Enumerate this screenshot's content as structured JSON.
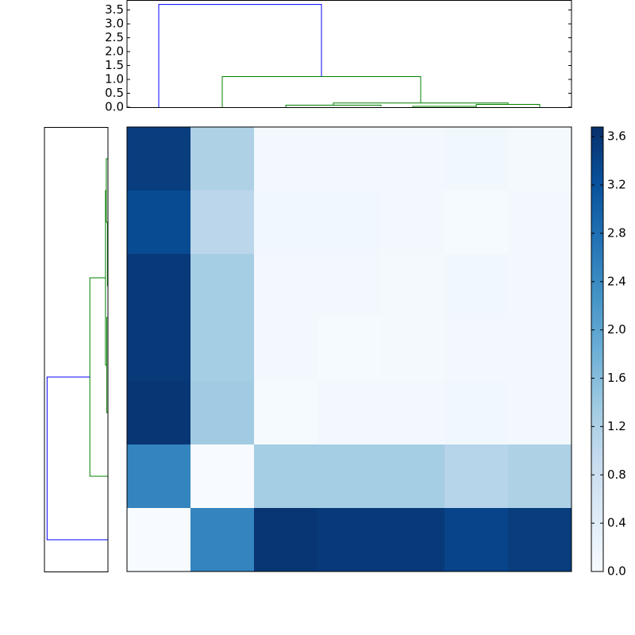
{
  "chart_data": [
    {
      "type": "dendrogram",
      "orientation": "top",
      "xlim": [
        0,
        70
      ],
      "ylim": [
        0,
        3.86
      ],
      "yticks": [
        {
          "value": 0,
          "label": "0.0"
        },
        {
          "value": 0.5,
          "label": "0.5"
        },
        {
          "value": 1,
          "label": "1.0"
        },
        {
          "value": 1.5,
          "label": "1.5"
        },
        {
          "value": 2,
          "label": "2.0"
        },
        {
          "value": 2.5,
          "label": "2.5"
        },
        {
          "value": 3,
          "label": "3.0"
        },
        {
          "value": 3.5,
          "label": "3.5"
        }
      ],
      "links": [
        {
          "color": "#008000",
          "pos": [
            45,
            45,
            55,
            55
          ],
          "dist": [
            0,
            0.03,
            0.03,
            0
          ]
        },
        {
          "color": "#008000",
          "pos": [
            25,
            25,
            40,
            40
          ],
          "dist": [
            0,
            0.07,
            0.07,
            0.03
          ]
        },
        {
          "color": "#008000",
          "pos": [
            55,
            55,
            65,
            65
          ],
          "dist": [
            0,
            0.1,
            0.1,
            0
          ]
        },
        {
          "color": "#008000",
          "pos": [
            32.5,
            32.5,
            60,
            60
          ],
          "dist": [
            0.07,
            0.15,
            0.15,
            0.1
          ]
        },
        {
          "color": "#008000",
          "pos": [
            15,
            15,
            46.25,
            46.25
          ],
          "dist": [
            0,
            1.1,
            1.1,
            0.15
          ]
        },
        {
          "color": "#0000ff",
          "pos": [
            5,
            5,
            30.625,
            30.625
          ],
          "dist": [
            0,
            3.7,
            3.7,
            1.1
          ]
        }
      ]
    },
    {
      "type": "dendrogram",
      "orientation": "left",
      "xlim": [
        3.86,
        0
      ],
      "ylim": [
        0,
        70
      ],
      "links": [
        {
          "color": "#008000",
          "pos": [
            45,
            45,
            55,
            55
          ],
          "dist": [
            0,
            0.03,
            0.03,
            0
          ]
        },
        {
          "color": "#008000",
          "pos": [
            25,
            25,
            40,
            40
          ],
          "dist": [
            0,
            0.07,
            0.07,
            0.03
          ]
        },
        {
          "color": "#008000",
          "pos": [
            55,
            55,
            65,
            65
          ],
          "dist": [
            0,
            0.1,
            0.1,
            0
          ]
        },
        {
          "color": "#008000",
          "pos": [
            32.5,
            32.5,
            60,
            60
          ],
          "dist": [
            0.07,
            0.15,
            0.15,
            0.1
          ]
        },
        {
          "color": "#008000",
          "pos": [
            15,
            15,
            46.25,
            46.25
          ],
          "dist": [
            0,
            1.1,
            1.1,
            0.15
          ]
        },
        {
          "color": "#0000ff",
          "pos": [
            5,
            5,
            30.625,
            30.625
          ],
          "dist": [
            0,
            3.7,
            3.7,
            1.1
          ]
        }
      ]
    },
    {
      "type": "heatmap",
      "values": [
        [
          3.5,
          1.2,
          0.1,
          0.1,
          0.1,
          0.12,
          0.05
        ],
        [
          3.3,
          1.05,
          0.12,
          0.12,
          0.1,
          0.03,
          0.08
        ],
        [
          3.55,
          1.3,
          0.08,
          0.08,
          0.05,
          0.12,
          0.08
        ],
        [
          3.55,
          1.3,
          0.08,
          0.04,
          0.06,
          0.1,
          0.08
        ],
        [
          3.6,
          1.35,
          0.03,
          0.08,
          0.08,
          0.12,
          0.1
        ],
        [
          2.5,
          0.0,
          1.3,
          1.3,
          1.3,
          1.1,
          1.2
        ],
        [
          0.0,
          2.5,
          3.6,
          3.55,
          3.55,
          3.4,
          3.5
        ]
      ],
      "colors": [
        "#f7fbff",
        "#deebf7",
        "#c6dbef",
        "#9ecae1",
        "#6baed6",
        "#4292c6",
        "#2171b5",
        "#08519c",
        "#08306b"
      ],
      "clim": [
        0,
        3.68
      ],
      "cticks": [
        {
          "value": 0,
          "label": "0.0"
        },
        {
          "value": 0.4,
          "label": "0.4"
        },
        {
          "value": 0.8,
          "label": "0.8"
        },
        {
          "value": 1.2,
          "label": "1.2"
        },
        {
          "value": 1.6,
          "label": "1.6"
        },
        {
          "value": 2,
          "label": "2.0"
        },
        {
          "value": 2.4,
          "label": "2.4"
        },
        {
          "value": 2.8,
          "label": "2.8"
        },
        {
          "value": 3.2,
          "label": "3.2"
        },
        {
          "value": 3.6,
          "label": "3.6"
        }
      ]
    }
  ]
}
